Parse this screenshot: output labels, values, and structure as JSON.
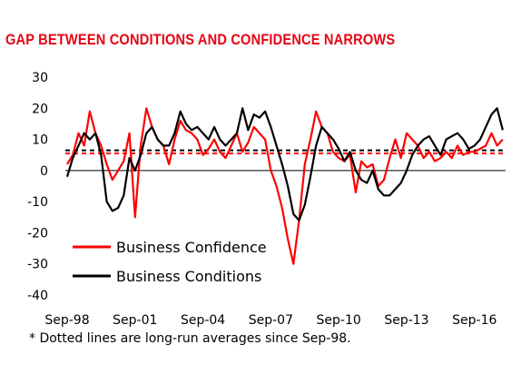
{
  "chart_data": {
    "type": "line",
    "title": "GAP BETWEEN CONDITIONS AND CONFIDENCE NARROWS",
    "footnote": "* Dotted lines are long-run  averages since Sep-98.",
    "x_ticks": [
      "Sep-98",
      "Sep-01",
      "Sep-04",
      "Sep-07",
      "Sep-10",
      "Sep-13",
      "Sep-16"
    ],
    "x_range": [
      "1998-09",
      "2018-01"
    ],
    "y_ticks": [
      "30",
      "20",
      "10",
      "0",
      "-10",
      "-20",
      "-30",
      "-40"
    ],
    "ylim": [
      -40,
      30
    ],
    "legend_position": "bottom-left",
    "series": [
      {
        "name": "Business Confidence",
        "color": "#ff0000",
        "long_run_average": 5.5,
        "points": [
          [
            "1998-09",
            2
          ],
          [
            "1998-12",
            5
          ],
          [
            "1999-03",
            12
          ],
          [
            "1999-06",
            8
          ],
          [
            "1999-09",
            19
          ],
          [
            "1999-12",
            12
          ],
          [
            "2000-03",
            8
          ],
          [
            "2000-06",
            2
          ],
          [
            "2000-09",
            -3
          ],
          [
            "2000-12",
            0
          ],
          [
            "2001-03",
            3
          ],
          [
            "2001-06",
            12
          ],
          [
            "2001-09",
            -15
          ],
          [
            "2001-12",
            8
          ],
          [
            "2002-03",
            20
          ],
          [
            "2002-06",
            14
          ],
          [
            "2002-09",
            10
          ],
          [
            "2002-12",
            8
          ],
          [
            "2003-03",
            2
          ],
          [
            "2003-06",
            10
          ],
          [
            "2003-09",
            16
          ],
          [
            "2003-12",
            13
          ],
          [
            "2004-03",
            12
          ],
          [
            "2004-06",
            10
          ],
          [
            "2004-09",
            5
          ],
          [
            "2004-12",
            7
          ],
          [
            "2005-03",
            10
          ],
          [
            "2005-06",
            6
          ],
          [
            "2005-09",
            4
          ],
          [
            "2005-12",
            8
          ],
          [
            "2006-03",
            12
          ],
          [
            "2006-06",
            6
          ],
          [
            "2006-09",
            9
          ],
          [
            "2006-12",
            14
          ],
          [
            "2007-03",
            12
          ],
          [
            "2007-06",
            10
          ],
          [
            "2007-09",
            0
          ],
          [
            "2007-12",
            -5
          ],
          [
            "2008-03",
            -12
          ],
          [
            "2008-06",
            -22
          ],
          [
            "2008-09",
            -30
          ],
          [
            "2008-12",
            -16
          ],
          [
            "2009-03",
            2
          ],
          [
            "2009-06",
            10
          ],
          [
            "2009-09",
            19
          ],
          [
            "2009-12",
            14
          ],
          [
            "2010-03",
            12
          ],
          [
            "2010-06",
            6
          ],
          [
            "2010-09",
            4
          ],
          [
            "2010-12",
            3
          ],
          [
            "2011-03",
            5
          ],
          [
            "2011-06",
            -7
          ],
          [
            "2011-09",
            3
          ],
          [
            "2011-12",
            1
          ],
          [
            "2012-03",
            2
          ],
          [
            "2012-06",
            -5
          ],
          [
            "2012-09",
            -3
          ],
          [
            "2012-12",
            4
          ],
          [
            "2013-03",
            10
          ],
          [
            "2013-06",
            4
          ],
          [
            "2013-09",
            12
          ],
          [
            "2013-12",
            10
          ],
          [
            "2014-03",
            8
          ],
          [
            "2014-06",
            4
          ],
          [
            "2014-09",
            6
          ],
          [
            "2014-12",
            3
          ],
          [
            "2015-03",
            4
          ],
          [
            "2015-06",
            6
          ],
          [
            "2015-09",
            4
          ],
          [
            "2015-12",
            8
          ],
          [
            "2016-03",
            5
          ],
          [
            "2016-06",
            6
          ],
          [
            "2016-09",
            6
          ],
          [
            "2016-12",
            7
          ],
          [
            "2017-03",
            8
          ],
          [
            "2017-06",
            12
          ],
          [
            "2017-09",
            8
          ],
          [
            "2017-12",
            10
          ]
        ]
      },
      {
        "name": "Business Conditions",
        "color": "#000000",
        "long_run_average": 6.5,
        "points": [
          [
            "1998-09",
            -2
          ],
          [
            "1998-12",
            4
          ],
          [
            "1999-03",
            8
          ],
          [
            "1999-06",
            12
          ],
          [
            "1999-09",
            10
          ],
          [
            "1999-12",
            12
          ],
          [
            "2000-03",
            5
          ],
          [
            "2000-06",
            -10
          ],
          [
            "2000-09",
            -13
          ],
          [
            "2000-12",
            -12
          ],
          [
            "2001-03",
            -8
          ],
          [
            "2001-06",
            4
          ],
          [
            "2001-09",
            0
          ],
          [
            "2001-12",
            5
          ],
          [
            "2002-03",
            12
          ],
          [
            "2002-06",
            14
          ],
          [
            "2002-09",
            10
          ],
          [
            "2002-12",
            8
          ],
          [
            "2003-03",
            8
          ],
          [
            "2003-06",
            12
          ],
          [
            "2003-09",
            19
          ],
          [
            "2003-12",
            15
          ],
          [
            "2004-03",
            13
          ],
          [
            "2004-06",
            14
          ],
          [
            "2004-09",
            12
          ],
          [
            "2004-12",
            10
          ],
          [
            "2005-03",
            14
          ],
          [
            "2005-06",
            10
          ],
          [
            "2005-09",
            8
          ],
          [
            "2005-12",
            10
          ],
          [
            "2006-03",
            12
          ],
          [
            "2006-06",
            20
          ],
          [
            "2006-09",
            13
          ],
          [
            "2006-12",
            18
          ],
          [
            "2007-03",
            17
          ],
          [
            "2007-06",
            19
          ],
          [
            "2007-09",
            14
          ],
          [
            "2007-12",
            8
          ],
          [
            "2008-03",
            2
          ],
          [
            "2008-06",
            -5
          ],
          [
            "2008-09",
            -14
          ],
          [
            "2008-12",
            -16
          ],
          [
            "2009-03",
            -11
          ],
          [
            "2009-06",
            -2
          ],
          [
            "2009-09",
            8
          ],
          [
            "2009-12",
            14
          ],
          [
            "2010-03",
            12
          ],
          [
            "2010-06",
            10
          ],
          [
            "2010-09",
            7
          ],
          [
            "2010-12",
            3
          ],
          [
            "2011-03",
            6
          ],
          [
            "2011-06",
            0
          ],
          [
            "2011-09",
            -3
          ],
          [
            "2011-12",
            -4
          ],
          [
            "2012-03",
            0
          ],
          [
            "2012-06",
            -6
          ],
          [
            "2012-09",
            -8
          ],
          [
            "2012-12",
            -8
          ],
          [
            "2013-03",
            -6
          ],
          [
            "2013-06",
            -4
          ],
          [
            "2013-09",
            0
          ],
          [
            "2013-12",
            5
          ],
          [
            "2014-03",
            8
          ],
          [
            "2014-06",
            10
          ],
          [
            "2014-09",
            11
          ],
          [
            "2014-12",
            8
          ],
          [
            "2015-03",
            5
          ],
          [
            "2015-06",
            10
          ],
          [
            "2015-09",
            11
          ],
          [
            "2015-12",
            12
          ],
          [
            "2016-03",
            10
          ],
          [
            "2016-06",
            7
          ],
          [
            "2016-09",
            8
          ],
          [
            "2016-12",
            10
          ],
          [
            "2017-03",
            14
          ],
          [
            "2017-06",
            18
          ],
          [
            "2017-09",
            20
          ],
          [
            "2017-12",
            13
          ]
        ]
      }
    ]
  }
}
